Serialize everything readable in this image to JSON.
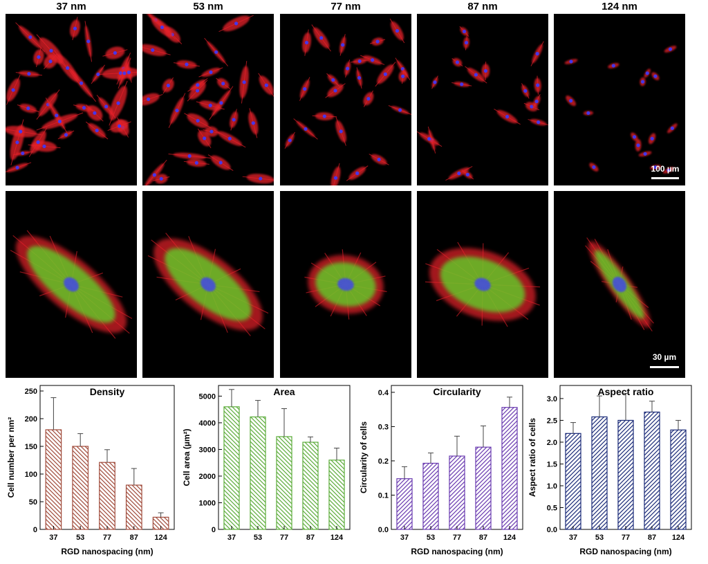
{
  "micrographs": {
    "columns": [
      "37 nm",
      "53 nm",
      "77 nm",
      "87 nm",
      "124 nm"
    ],
    "row1_scalebar": "100 µm",
    "row2_scalebar": "30 µm"
  },
  "colors": {
    "density": "#a04a3a",
    "area": "#5cac3a",
    "circularity": "#6a3ab0",
    "aspect": "#1a2a78",
    "actin": "#e8202a",
    "nucleus": "#3a3aff",
    "vinculin": "#5cdc2a"
  },
  "chart_data": [
    {
      "type": "bar",
      "title": "Density",
      "xlabel": "RGD nanospacing (nm)",
      "ylabel": "Cell number per nm²",
      "categories": [
        "37",
        "53",
        "77",
        "87",
        "124"
      ],
      "values": [
        180,
        150,
        121,
        80,
        22
      ],
      "errors": [
        58,
        23,
        23,
        30,
        8
      ],
      "ylim": [
        0,
        260
      ],
      "yticks": [
        0,
        50,
        100,
        150,
        200,
        250
      ],
      "yticklabels": [
        "0",
        "50",
        "100",
        "150",
        "200",
        "250"
      ],
      "hatch": "backslash",
      "color": "#a04a3a"
    },
    {
      "type": "bar",
      "title": "Area",
      "xlabel": "",
      "ylabel": "Cell area (µm²)",
      "categories": [
        "37",
        "53",
        "77",
        "87",
        "124"
      ],
      "values": [
        4600,
        4220,
        3480,
        3270,
        2600
      ],
      "errors": [
        650,
        620,
        1050,
        200,
        450
      ],
      "ylim": [
        0,
        5400
      ],
      "yticks": [
        0,
        1000,
        2000,
        3000,
        4000,
        5000
      ],
      "yticklabels": [
        "0",
        "1000",
        "2000",
        "3000",
        "4000",
        "5000"
      ],
      "hatch": "backslash",
      "color": "#5cac3a"
    },
    {
      "type": "bar",
      "title": "Circularity",
      "xlabel": "RGD nanospacing (nm)",
      "ylabel": "Circularity of cells",
      "categories": [
        "37",
        "53",
        "77",
        "87",
        "124"
      ],
      "values": [
        0.148,
        0.193,
        0.214,
        0.24,
        0.356
      ],
      "errors": [
        0.035,
        0.03,
        0.058,
        0.062,
        0.03
      ],
      "ylim": [
        0,
        0.42
      ],
      "yticks": [
        0,
        0.1,
        0.2,
        0.3,
        0.4
      ],
      "yticklabels": [
        "0.0",
        "0.1",
        "0.2",
        "0.3",
        "0.4"
      ],
      "hatch": "slash",
      "color": "#6a3ab0"
    },
    {
      "type": "bar",
      "title": "Aspect ratio",
      "xlabel": "RGD nanospacing (nm)",
      "ylabel": "Aspect ratio of cells",
      "categories": [
        "37",
        "53",
        "77",
        "87",
        "124"
      ],
      "values": [
        2.2,
        2.58,
        2.5,
        2.69,
        2.28
      ],
      "errors": [
        0.25,
        0.48,
        0.62,
        0.25,
        0.22
      ],
      "ylim": [
        0,
        3.3
      ],
      "yticks": [
        0,
        0.5,
        1,
        1.5,
        2,
        2.5,
        3
      ],
      "yticklabels": [
        "0.0",
        "0.5",
        "1.0",
        "1.5",
        "2.0",
        "2.5",
        "3.0"
      ],
      "hatch": "slash",
      "color": "#1a2a78"
    }
  ]
}
